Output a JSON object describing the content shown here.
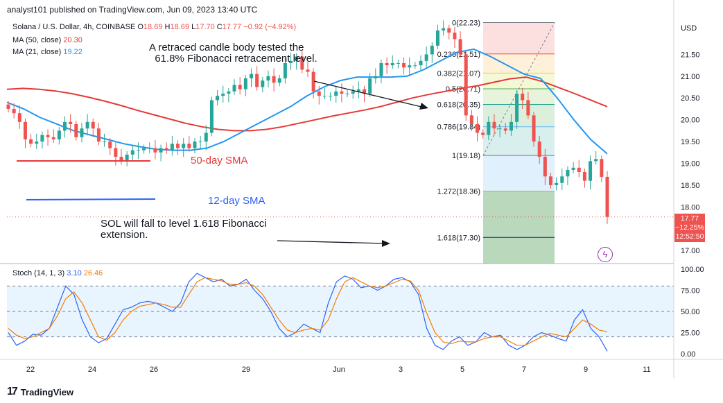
{
  "header": {
    "publisher_line": "analyst101 published on TradingView.com, Jun 09, 2023 13:40 UTC"
  },
  "legend": {
    "symbol": "Solana / U.S. Dollar, 4h, COINBASE",
    "open_label": "O",
    "open": "18.69",
    "high_label": "H",
    "high": "18.69",
    "low_label": "L",
    "low": "17.70",
    "close_label": "C",
    "close": "17.77",
    "change": "−0.92 (−4.92%)",
    "ma50_label": "MA (50, close)",
    "ma50_value": "20.30",
    "ma21_label": "MA (21, close)",
    "ma21_value": "19.22",
    "stoch_label": "Stoch (14, 1, 3)",
    "stoch_k": "3.10",
    "stoch_d": "26.46"
  },
  "annotations": {
    "retrace": "A retraced candle body tested the\n  61.8% Fibonacci retracement level.",
    "sma50": "50-day SMA",
    "sma12": "12-day SMA",
    "fall": "SOL will fall to level 1.618 Fibonacci\nextension."
  },
  "price_tag": {
    "price": "17.77",
    "change": "−12.25%",
    "countdown": "12:52:50"
  },
  "currency": "USD",
  "footer": {
    "brand": "TradingView"
  },
  "colors": {
    "up": "#26a69a",
    "down": "#ef5350",
    "ma50": "#e53935",
    "ma21": "#2196f3",
    "stoch_k": "#2962ff",
    "stoch_d": "#f57c00"
  },
  "chart_data": {
    "type": "candlestick",
    "price_axis": {
      "ticks": [
        "21.50",
        "21.00",
        "20.50",
        "20.00",
        "19.50",
        "19.00",
        "18.50",
        "18.00",
        "17.00"
      ],
      "range": [
        16.7,
        22.35
      ]
    },
    "time_axis": {
      "labels": [
        "22",
        "24",
        "26",
        "29",
        "Jun",
        "3",
        "5",
        "7",
        "9",
        "11"
      ]
    },
    "fibonacci": [
      {
        "level": "0",
        "price": "22.23"
      },
      {
        "level": "0.236",
        "price": "21.51"
      },
      {
        "level": "0.382",
        "price": "21.07"
      },
      {
        "level": "0.5",
        "price": "20.71"
      },
      {
        "level": "0.618",
        "price": "20.35"
      },
      {
        "level": "0.786",
        "price": "19.84"
      },
      {
        "level": "1",
        "price": "19.18"
      },
      {
        "level": "1.272",
        "price": "18.36"
      },
      {
        "level": "1.618",
        "price": "17.30"
      }
    ],
    "stoch_axis": {
      "ticks": [
        "100.00",
        "75.00",
        "50.00",
        "25.00",
        "0.00"
      ],
      "range": [
        0,
        100
      ]
    },
    "closes": [
      20.25,
      20.15,
      19.95,
      19.55,
      19.45,
      19.5,
      19.65,
      19.6,
      19.55,
      19.75,
      19.95,
      19.9,
      19.6,
      19.8,
      19.95,
      19.8,
      19.5,
      19.5,
      19.35,
      19.15,
      19.05,
      19.2,
      19.3,
      19.3,
      19.35,
      19.35,
      19.25,
      19.35,
      19.3,
      19.45,
      19.35,
      19.45,
      19.35,
      19.5,
      19.5,
      19.7,
      20.45,
      20.55,
      20.6,
      20.65,
      20.8,
      20.7,
      20.95,
      21.05,
      20.75,
      20.9,
      21.0,
      20.85,
      20.95,
      21.3,
      21.35,
      21.45,
      21.15,
      21.1,
      20.65,
      20.55,
      20.55,
      20.55,
      20.65,
      20.6,
      20.6,
      20.65,
      20.7,
      20.6,
      20.95,
      21.0,
      21.3,
      21.25,
      21.3,
      21.3,
      21.2,
      21.25,
      21.25,
      21.35,
      21.5,
      21.7,
      22.05,
      22.1,
      22.0,
      21.85,
      21.5,
      20.1,
      19.9,
      19.7,
      19.65,
      19.95,
      19.8,
      19.8,
      19.75,
      19.95,
      20.6,
      20.45,
      20.1,
      19.5,
      19.15,
      18.7,
      18.5,
      18.55,
      18.7,
      18.85,
      18.9,
      18.8,
      18.6,
      19.05,
      19.1,
      18.69,
      17.77
    ],
    "ma50": [
      20.7,
      20.72,
      20.7,
      20.66,
      20.6,
      20.52,
      20.43,
      20.33,
      20.22,
      20.12,
      20.02,
      19.92,
      19.84,
      19.78,
      19.75,
      19.75,
      19.78,
      19.84,
      19.92,
      20.0,
      20.08,
      20.15,
      20.22,
      20.3,
      20.4,
      20.5,
      20.58,
      20.65,
      20.72,
      20.78,
      20.86,
      20.94,
      20.98,
      20.88,
      20.74,
      20.6,
      20.45,
      20.3
    ],
    "ma21": [
      20.4,
      20.25,
      20.05,
      19.9,
      19.75,
      19.65,
      19.55,
      19.45,
      19.38,
      19.32,
      19.3,
      19.3,
      19.35,
      19.5,
      19.7,
      19.9,
      20.1,
      20.3,
      20.55,
      20.75,
      20.9,
      20.98,
      20.98,
      20.98,
      21.0,
      21.15,
      21.35,
      21.55,
      21.62,
      21.45,
      21.25,
      21.05,
      20.95,
      20.5,
      20.0,
      19.55,
      19.22
    ],
    "stoch_k": [
      25,
      10,
      15,
      23,
      22,
      30,
      55,
      80,
      70,
      40,
      20,
      13,
      18,
      35,
      52,
      55,
      60,
      62,
      60,
      55,
      50,
      60,
      85,
      95,
      90,
      85,
      88,
      80,
      82,
      88,
      75,
      65,
      50,
      30,
      20,
      25,
      35,
      30,
      25,
      60,
      85,
      92,
      88,
      78,
      80,
      75,
      80,
      88,
      90,
      85,
      70,
      30,
      10,
      5,
      15,
      20,
      10,
      14,
      25,
      20,
      22,
      10,
      5,
      10,
      20,
      25,
      22,
      18,
      15,
      40,
      52,
      30,
      20,
      3
    ],
    "stoch_d": [
      30,
      22,
      18,
      20,
      25,
      30,
      45,
      65,
      73,
      60,
      40,
      20,
      16,
      25,
      40,
      50,
      56,
      58,
      60,
      58,
      55,
      55,
      70,
      85,
      90,
      88,
      86,
      82,
      82,
      84,
      80,
      70,
      55,
      40,
      28,
      25,
      28,
      30,
      28,
      40,
      65,
      85,
      90,
      85,
      80,
      78,
      80,
      84,
      88,
      86,
      75,
      48,
      25,
      14,
      12,
      15,
      14,
      14,
      18,
      20,
      20,
      15,
      10,
      10,
      15,
      20,
      24,
      22,
      20,
      30,
      40,
      35,
      28,
      26
    ]
  }
}
